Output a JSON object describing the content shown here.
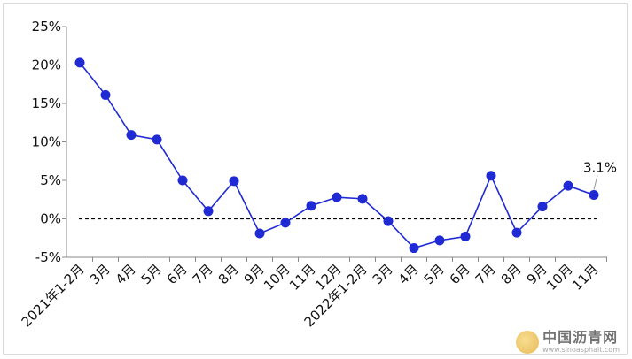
{
  "chart_data": {
    "type": "line",
    "categories": [
      "2021年1-2月",
      "3月",
      "4月",
      "5月",
      "6月",
      "7月",
      "8月",
      "9月",
      "10月",
      "11月",
      "12月",
      "2022年1-2月",
      "3月",
      "4月",
      "5月",
      "6月",
      "7月",
      "8月",
      "9月",
      "10月",
      "11月"
    ],
    "values": [
      20.3,
      16.1,
      10.9,
      10.3,
      5.0,
      1.0,
      4.9,
      -1.9,
      -0.5,
      1.7,
      2.8,
      2.6,
      -0.3,
      -3.8,
      -2.8,
      -2.3,
      5.6,
      -1.8,
      1.6,
      4.3,
      3.1
    ],
    "ylim": [
      -5,
      25
    ],
    "yticks": [
      -5,
      0,
      5,
      10,
      15,
      20,
      25
    ],
    "ytick_labels": [
      "-5%",
      "0%",
      "5%",
      "10%",
      "15%",
      "20%",
      "25%"
    ],
    "reference_line": 0,
    "annotation": {
      "index": 20,
      "text": "3.1%"
    },
    "colors": {
      "line": "#1f2ad4",
      "marker": "#1f2ad4",
      "axis": "#888888",
      "reference": "#000000"
    }
  },
  "watermark": {
    "cn": "中国沥青网",
    "en": "www.sinoasphalt.com"
  }
}
